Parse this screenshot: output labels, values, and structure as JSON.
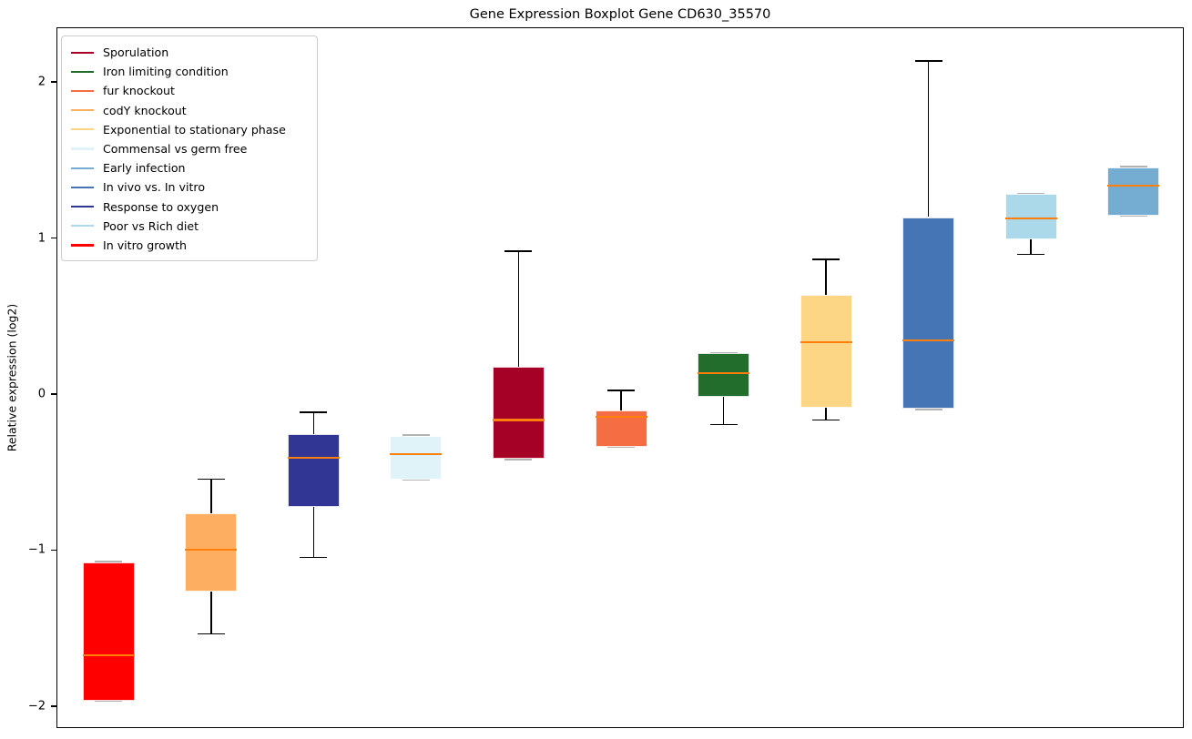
{
  "chart_data": {
    "type": "boxplot",
    "title": "Gene Expression Boxplot Gene CD630_35570",
    "ylabel": "Relative expression (log2)",
    "xlabel": "",
    "ylim": [
      -2.14,
      2.35
    ],
    "yticks": [
      2,
      1,
      0,
      -1,
      -2
    ],
    "grid": false,
    "x_tick_labels": [],
    "legend_position": "upper left",
    "median_color": "#ff7f0e",
    "whisker_color": "#000000",
    "edge_cap_color": "#b3b3b3",
    "series": [
      {
        "name": "In vitro growth",
        "color": "#ff0000",
        "whisker_low": -1.96,
        "q1": -1.96,
        "median": -1.67,
        "q3": -1.07,
        "whisker_high": -1.07
      },
      {
        "name": "codY knockout",
        "color": "#fdae61",
        "whisker_low": -1.53,
        "q1": -1.26,
        "median": -0.99,
        "q3": -0.76,
        "whisker_high": -0.54
      },
      {
        "name": "Response to oxygen",
        "color": "#313695",
        "whisker_low": -1.04,
        "q1": -0.72,
        "median": -0.4,
        "q3": -0.25,
        "whisker_high": -0.11
      },
      {
        "name": "Commensal vs germ free",
        "color": "#e0f3f8",
        "whisker_low": -0.54,
        "q1": -0.54,
        "median": -0.38,
        "q3": -0.26,
        "whisker_high": -0.26
      },
      {
        "name": "Sporulation",
        "color": "#a50026",
        "whisker_low": -0.41,
        "q1": -0.41,
        "median": -0.16,
        "q3": 0.18,
        "whisker_high": 0.92
      },
      {
        "name": "fur knockout",
        "color": "#f46d43",
        "whisker_low": -0.33,
        "q1": -0.33,
        "median": -0.14,
        "q3": -0.1,
        "whisker_high": 0.03
      },
      {
        "name": "Iron limiting condition",
        "color": "#226d2c",
        "whisker_low": -0.19,
        "q1": -0.01,
        "median": 0.14,
        "q3": 0.27,
        "whisker_high": 0.27
      },
      {
        "name": "Exponential to stationary phase",
        "color": "#fcd685",
        "whisker_low": -0.16,
        "q1": -0.08,
        "median": 0.34,
        "q3": 0.64,
        "whisker_high": 0.87
      },
      {
        "name": "In vivo vs. In vitro",
        "color": "#4575b4",
        "whisker_low": -0.09,
        "q1": -0.09,
        "median": 0.35,
        "q3": 1.14,
        "whisker_high": 2.14
      },
      {
        "name": "Poor vs Rich diet",
        "color": "#abd9e9",
        "whisker_low": 0.9,
        "q1": 1.0,
        "median": 1.13,
        "q3": 1.29,
        "whisker_high": 1.29
      },
      {
        "name": "Early infection",
        "color": "#74add1",
        "whisker_low": 1.15,
        "q1": 1.15,
        "median": 1.34,
        "q3": 1.46,
        "whisker_high": 1.46
      }
    ],
    "legend": [
      {
        "label": "Sporulation",
        "color": "#a50026"
      },
      {
        "label": "Iron limiting condition",
        "color": "#226d2c"
      },
      {
        "label": "fur knockout",
        "color": "#f46d43"
      },
      {
        "label": "codY knockout",
        "color": "#fdae61"
      },
      {
        "label": "Exponential to stationary phase",
        "color": "#fcd685"
      },
      {
        "label": "Commensal vs germ free",
        "color": "#e0f3f8"
      },
      {
        "label": "Early infection",
        "color": "#74add1"
      },
      {
        "label": "In vivo vs. In vitro",
        "color": "#4575b4"
      },
      {
        "label": "Response to oxygen",
        "color": "#313695"
      },
      {
        "label": "Poor vs Rich diet",
        "color": "#abd9e9"
      },
      {
        "label": "In vitro growth",
        "color": "#ff0000"
      }
    ]
  }
}
